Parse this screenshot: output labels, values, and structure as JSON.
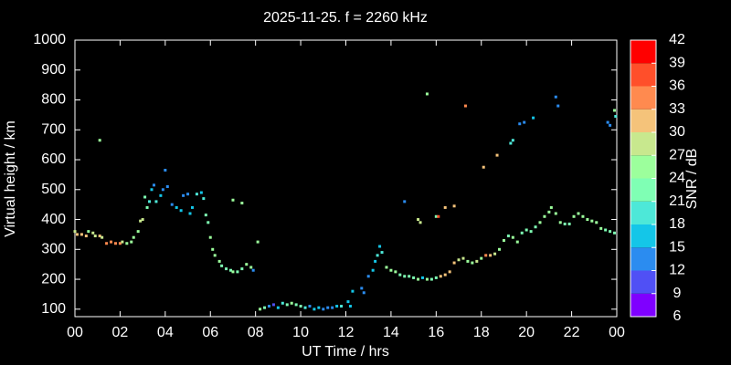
{
  "chart_data": {
    "type": "scatter",
    "title": "2025-11-25. f = 2260 kHz",
    "x_label": "UT Time / hrs",
    "y_label": "Virtual height / km",
    "xlim": [
      0,
      24
    ],
    "xticks": [
      {
        "value": 0,
        "label": "00"
      },
      {
        "value": 2,
        "label": "02"
      },
      {
        "value": 4,
        "label": "04"
      },
      {
        "value": 6,
        "label": "06"
      },
      {
        "value": 8,
        "label": "08"
      },
      10,
      12,
      14,
      16,
      18,
      20,
      22,
      {
        "value": 24,
        "label": "00"
      }
    ],
    "ylim": [
      75,
      1000
    ],
    "yticks": [
      100,
      200,
      300,
      400,
      500,
      600,
      700,
      800,
      900,
      1000
    ],
    "colorbar": {
      "label": "SNR / dB",
      "lim": [
        6,
        42
      ],
      "ticks": [
        6,
        9,
        12,
        15,
        18,
        21,
        24,
        27,
        30,
        33,
        36,
        39,
        42
      ],
      "colors": [
        "#7f00ff",
        "#5050f5",
        "#2b8cf0",
        "#14c6e8",
        "#4de8d8",
        "#7fffb4",
        "#9cff9c",
        "#c8e88e",
        "#f5c37a",
        "#ff8a4f",
        "#ff4f2a",
        "#ff0000"
      ]
    },
    "series": [
      {
        "x": [
          0.0,
          0.1,
          0.3,
          0.5,
          0.6,
          0.8,
          0.9,
          1.1,
          1.2,
          1.4,
          1.6,
          1.8,
          2.0,
          1.1,
          2.1,
          2.3,
          2.5,
          2.6,
          2.8,
          2.9,
          3.0,
          3.1,
          3.2,
          3.3,
          3.4,
          3.5,
          3.6,
          3.8,
          3.9,
          4.0,
          4.1,
          4.3,
          4.5,
          4.7,
          4.8,
          5.0,
          5.1,
          5.2,
          5.4,
          5.6,
          5.7,
          5.8,
          5.9,
          6.0,
          6.1,
          6.2,
          6.4,
          6.5,
          6.7,
          6.9,
          7.0,
          7.2,
          7.4,
          7.6,
          7.8,
          7.9,
          7.0,
          7.4,
          8.1,
          8.2,
          8.4,
          8.6,
          8.8,
          9.0,
          9.2,
          9.4,
          9.6,
          9.8,
          10.0,
          10.2,
          10.4,
          10.6,
          10.8,
          11.0,
          11.2,
          11.4,
          11.6,
          11.8,
          12.1,
          12.3,
          12.2,
          12.7,
          12.8,
          13.0,
          13.2,
          13.3,
          13.4,
          13.5,
          13.6,
          13.8,
          14.0,
          14.2,
          14.4,
          14.6,
          14.8,
          15.0,
          15.2,
          15.4,
          15.6,
          15.8,
          16.0,
          16.2,
          16.4,
          16.6,
          16.8,
          17.0,
          17.2,
          17.4,
          17.6,
          17.8,
          18.0,
          18.2,
          18.4,
          18.6,
          18.8,
          19.0,
          19.2,
          19.4,
          19.6,
          19.8,
          20.0,
          20.2,
          20.4,
          20.6,
          20.8,
          21.0,
          21.1,
          21.3,
          21.5,
          21.7,
          21.9,
          22.1,
          22.3,
          22.5,
          22.7,
          22.9,
          23.1,
          23.3,
          23.5,
          23.7,
          23.9,
          14.6,
          15.2,
          15.3,
          15.6,
          16.0,
          16.1,
          16.4,
          16.8,
          17.3,
          18.1,
          18.7,
          19.3,
          19.4,
          19.7,
          19.9,
          20.3,
          21.3,
          21.4,
          23.6,
          23.7,
          23.9,
          23.95
        ],
        "values": [
          360,
          350,
          350,
          345,
          360,
          355,
          345,
          345,
          340,
          320,
          325,
          320,
          320,
          665,
          325,
          320,
          325,
          340,
          360,
          395,
          400,
          475,
          440,
          460,
          500,
          515,
          460,
          480,
          500,
          565,
          510,
          450,
          440,
          430,
          480,
          485,
          420,
          440,
          485,
          490,
          470,
          415,
          390,
          340,
          300,
          280,
          260,
          245,
          235,
          230,
          225,
          225,
          235,
          250,
          240,
          230,
          465,
          455,
          325,
          100,
          105,
          110,
          115,
          105,
          120,
          115,
          120,
          115,
          110,
          105,
          110,
          100,
          105,
          100,
          105,
          105,
          110,
          110,
          125,
          160,
          110,
          170,
          155,
          210,
          230,
          260,
          280,
          310,
          290,
          240,
          230,
          225,
          215,
          210,
          210,
          205,
          200,
          205,
          200,
          200,
          205,
          210,
          215,
          225,
          255,
          265,
          270,
          260,
          255,
          260,
          270,
          280,
          280,
          285,
          300,
          330,
          345,
          340,
          325,
          355,
          365,
          360,
          375,
          390,
          410,
          425,
          440,
          420,
          390,
          385,
          385,
          410,
          420,
          410,
          400,
          395,
          390,
          370,
          365,
          360,
          355,
          460,
          400,
          390,
          820,
          410,
          410,
          440,
          445,
          780,
          575,
          615,
          655,
          665,
          720,
          725,
          740,
          810,
          780,
          725,
          715,
          765,
          745
        ],
        "snr": [
          28,
          30,
          31,
          31,
          25,
          28,
          29,
          30,
          27,
          35,
          35,
          34,
          33,
          26,
          27,
          24,
          25,
          24,
          24,
          27,
          27,
          22,
          22,
          20,
          17,
          14,
          18,
          16,
          14,
          12,
          14,
          12,
          15,
          16,
          13,
          13,
          17,
          16,
          20,
          16,
          18,
          21,
          23,
          26,
          25,
          24,
          24,
          23,
          23,
          22,
          24,
          23,
          23,
          24,
          24,
          12,
          26,
          24,
          26,
          24,
          22,
          12,
          10,
          16,
          20,
          22,
          24,
          22,
          21,
          20,
          14,
          16,
          15,
          14,
          13,
          14,
          16,
          18,
          16,
          16,
          16,
          12,
          12,
          14,
          15,
          17,
          19,
          17,
          18,
          24,
          24,
          24,
          23,
          23,
          22,
          22,
          24,
          16,
          26,
          22,
          22,
          32,
          32,
          32,
          30,
          27,
          28,
          25,
          25,
          29,
          26,
          33,
          30,
          28,
          26,
          24,
          23,
          24,
          24,
          23,
          23,
          23,
          23,
          24,
          25,
          25,
          26,
          24,
          24,
          23,
          22,
          26,
          26,
          25,
          24,
          24,
          25,
          24,
          23,
          23,
          22,
          12,
          29,
          28,
          26,
          23,
          38,
          32,
          30,
          35,
          32,
          30,
          20,
          18,
          13,
          14,
          15,
          14,
          14,
          14,
          14,
          24,
          18
        ]
      }
    ]
  }
}
